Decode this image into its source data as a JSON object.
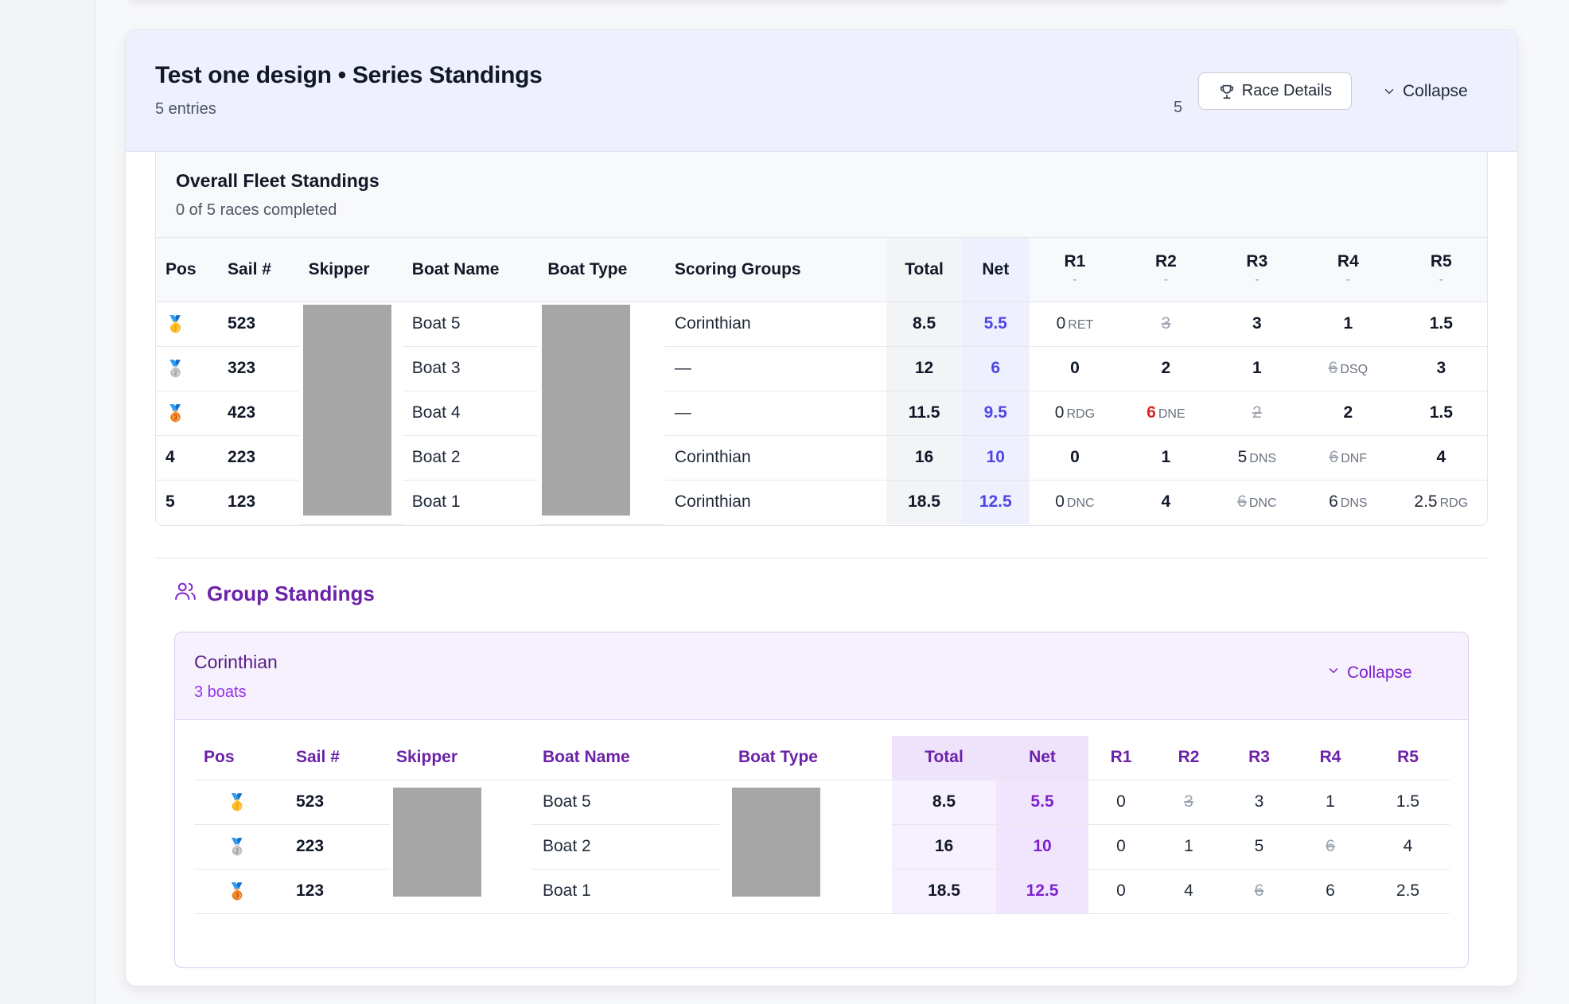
{
  "series": {
    "title": "Test one design • Series Standings",
    "entries": "5 entries",
    "count": "5",
    "race_details_label": "Race Details",
    "collapse_label": "Collapse"
  },
  "fleet": {
    "title": "Overall Fleet Standings",
    "subtitle": "0 of 5 races completed",
    "headers": {
      "pos": "Pos",
      "sail": "Sail #",
      "skipper": "Skipper",
      "boat_name": "Boat Name",
      "boat_type": "Boat Type",
      "groups": "Scoring Groups",
      "total": "Total",
      "net": "Net",
      "r1": "R1",
      "r2": "R2",
      "r3": "R3",
      "r4": "R4",
      "r5": "R5",
      "race_sub": "-"
    },
    "rows": [
      {
        "pos": "🥇",
        "sail": "523",
        "boat_name": "Boat 5",
        "groups": "Corinthian",
        "total": "8.5",
        "net": "5.5",
        "r1": "0",
        "r1_code": "RET",
        "r2": "3",
        "r3": "3",
        "r4": "1",
        "r5": "1.5"
      },
      {
        "pos": "🥈",
        "sail": "323",
        "boat_name": "Boat 3",
        "groups": "—",
        "total": "12",
        "net": "6",
        "r1": "0",
        "r2": "2",
        "r3": "1",
        "r4": "6",
        "r4_code": "DSQ",
        "r5": "3"
      },
      {
        "pos": "🥉",
        "sail": "423",
        "boat_name": "Boat 4",
        "groups": "—",
        "total": "11.5",
        "net": "9.5",
        "r1": "0",
        "r1_code": "RDG",
        "r2": "6",
        "r2_code": "DNE",
        "r3": "2",
        "r4": "2",
        "r5": "1.5"
      },
      {
        "pos": "4",
        "sail": "223",
        "boat_name": "Boat 2",
        "groups": "Corinthian",
        "total": "16",
        "net": "10",
        "r1": "0",
        "r2": "1",
        "r3": "5",
        "r3_code": "DNS",
        "r4": "6",
        "r4_code": "DNF",
        "r5": "4"
      },
      {
        "pos": "5",
        "sail": "123",
        "boat_name": "Boat 1",
        "groups": "Corinthian",
        "total": "18.5",
        "net": "12.5",
        "r1": "0",
        "r1_code": "DNC",
        "r2": "4",
        "r3": "6",
        "r3_code": "DNC",
        "r4": "6",
        "r4_code": "DNS",
        "r5": "2.5",
        "r5_code": "RDG"
      }
    ]
  },
  "groups": {
    "heading": "Group Standings",
    "corinthian": {
      "title": "Corinthian",
      "subtitle": "3 boats",
      "collapse_label": "Collapse",
      "headers": {
        "pos": "Pos",
        "sail": "Sail #",
        "skipper": "Skipper",
        "boat_name": "Boat Name",
        "boat_type": "Boat Type",
        "total": "Total",
        "net": "Net",
        "r1": "R1",
        "r2": "R2",
        "r3": "R3",
        "r4": "R4",
        "r5": "R5"
      },
      "rows": [
        {
          "pos": "🥇",
          "sail": "523",
          "boat_name": "Boat 5",
          "total": "8.5",
          "net": "5.5",
          "r1": "0",
          "r2": "3",
          "r3": "3",
          "r4": "1",
          "r5": "1.5"
        },
        {
          "pos": "🥈",
          "sail": "223",
          "boat_name": "Boat 2",
          "total": "16",
          "net": "10",
          "r1": "0",
          "r2": "1",
          "r3": "5",
          "r4": "6",
          "r5": "4"
        },
        {
          "pos": "🥉",
          "sail": "123",
          "boat_name": "Boat 1",
          "total": "18.5",
          "net": "12.5",
          "r1": "0",
          "r2": "4",
          "r3": "6",
          "r4": "6",
          "r5": "2.5"
        }
      ]
    }
  },
  "colors": {
    "accent_indigo": "#4f46e5",
    "accent_purple": "#7e22ce",
    "penalty_red": "#dc2626",
    "header_bg": "#eef0fd"
  },
  "icons": {
    "race_details": "trophy-icon",
    "collapse": "chevron-down-icon",
    "group_heading": "users-icon"
  }
}
